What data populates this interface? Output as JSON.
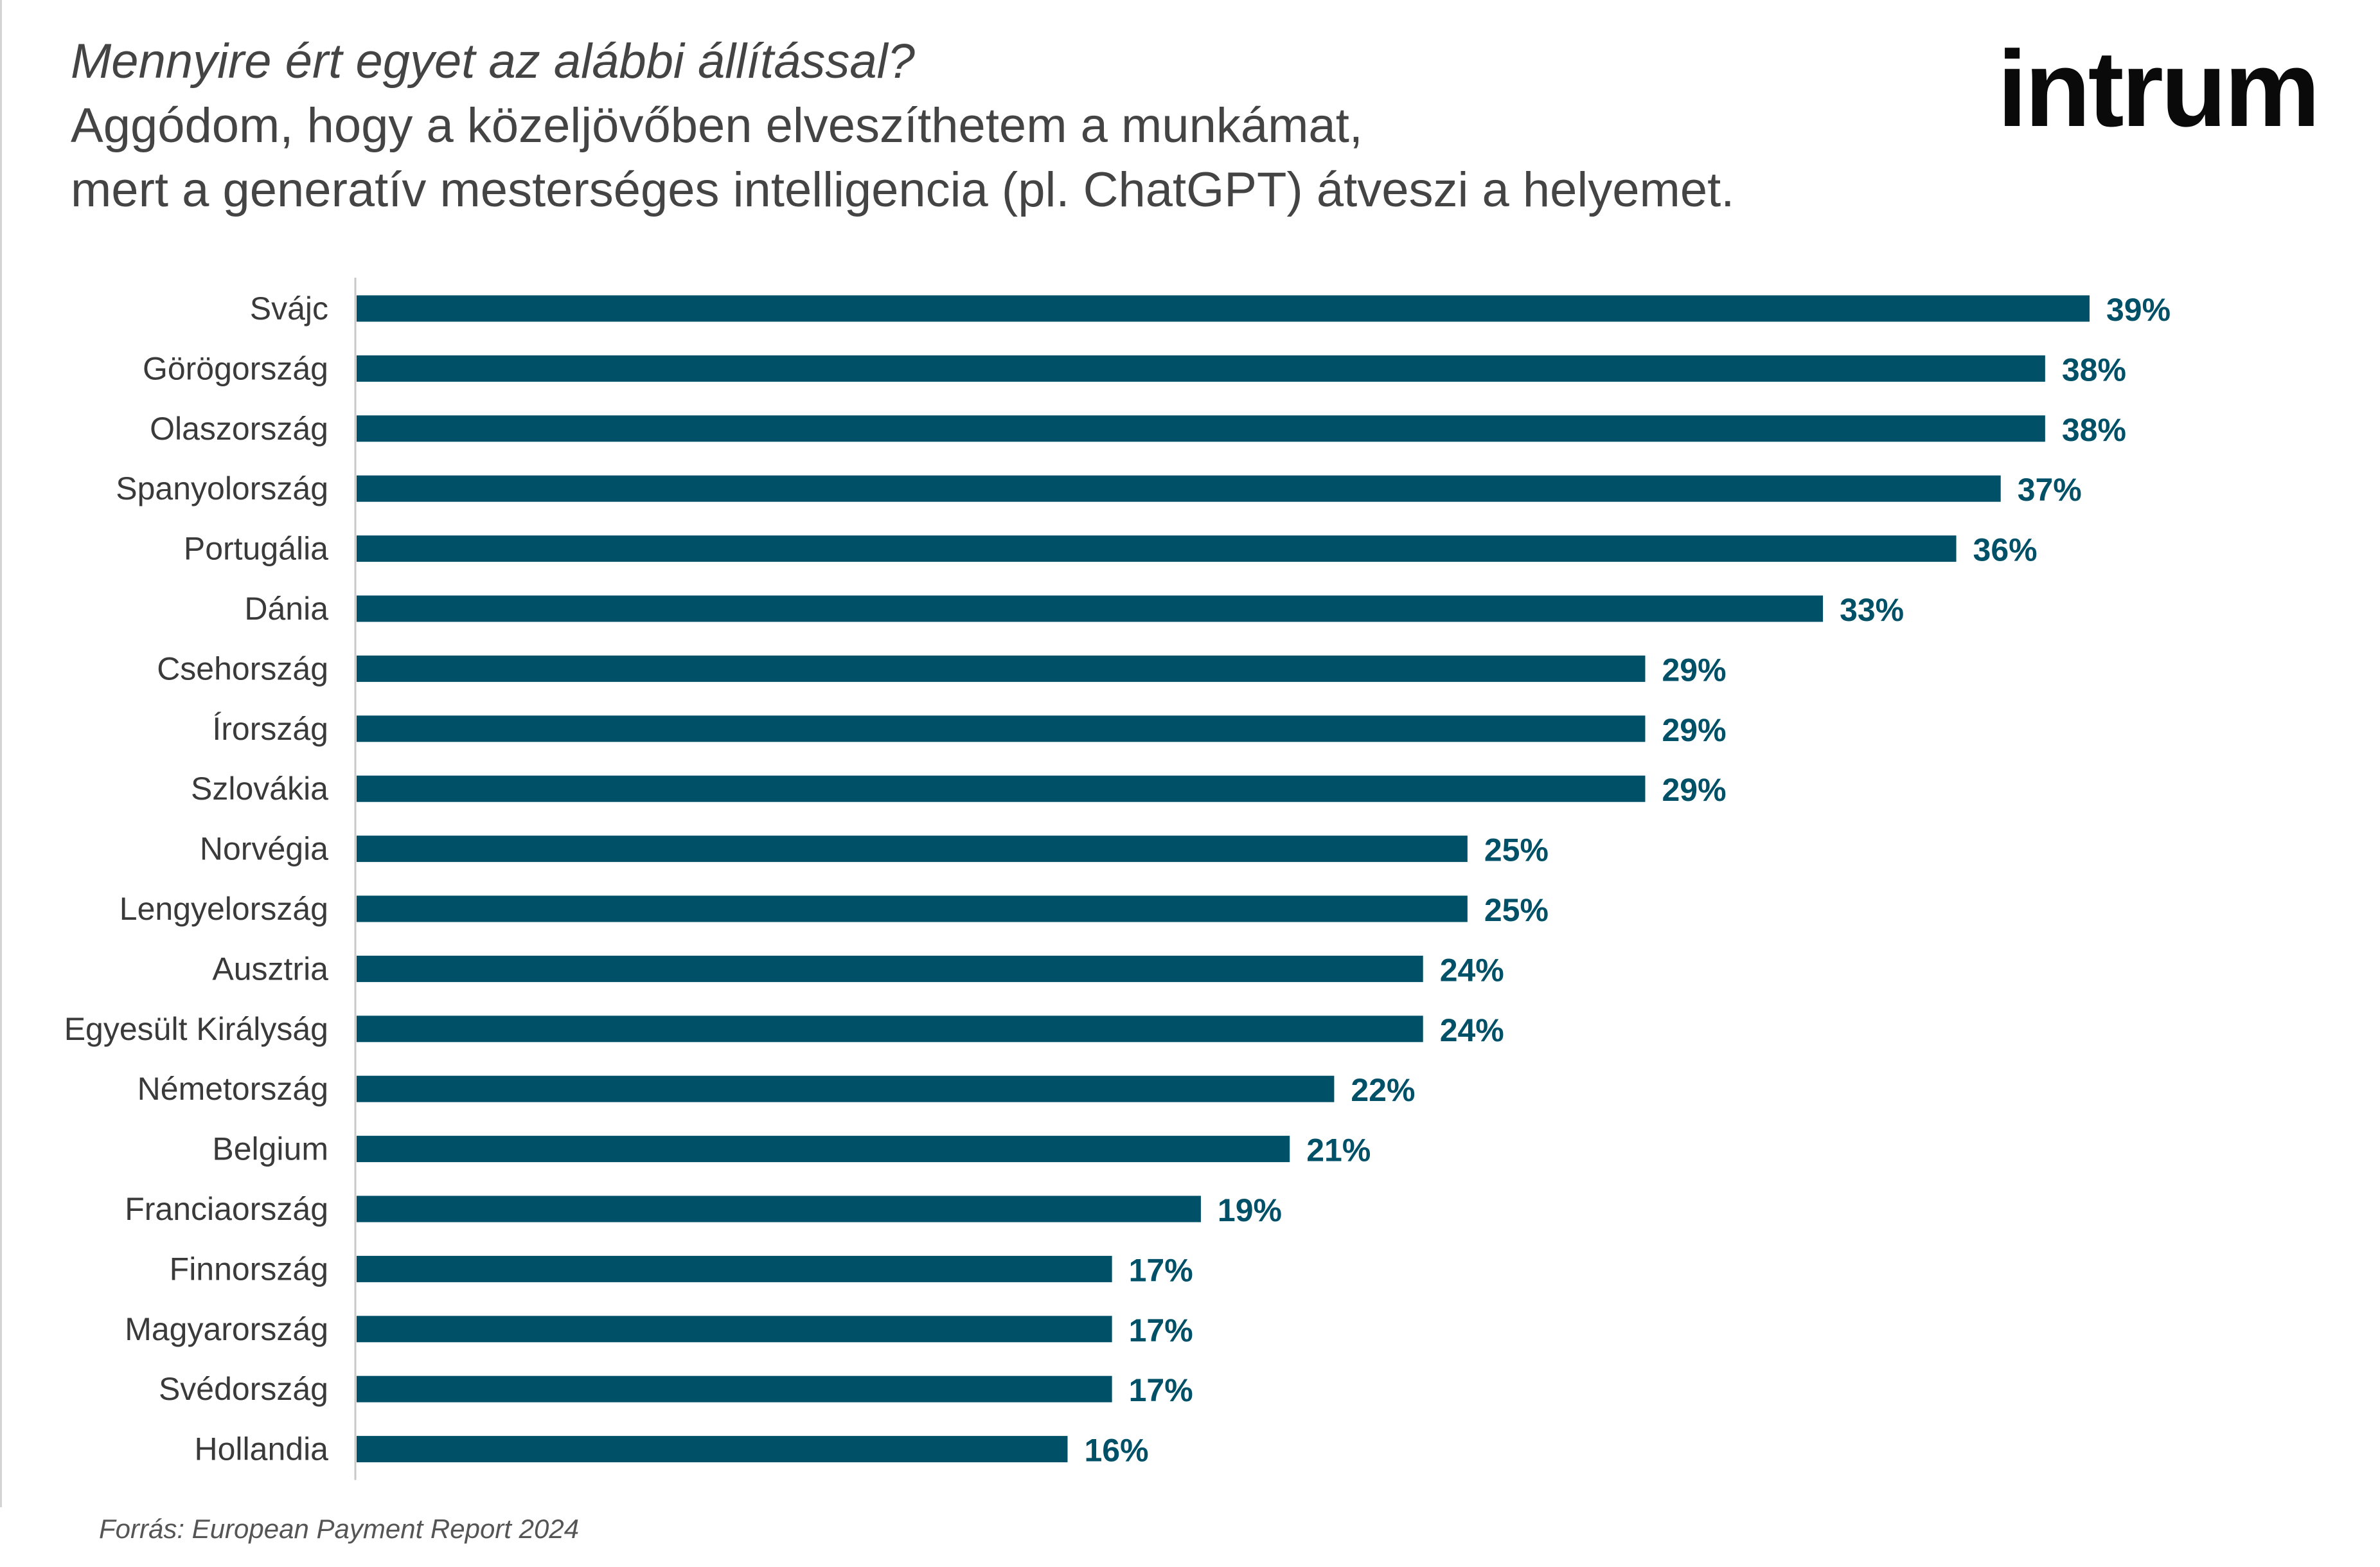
{
  "header": {
    "question": "Mennyire ért egyet az alábbi állítással?",
    "statement_line1": "Aggódom, hogy a közeljövőben elveszíthetem a munkámat,",
    "statement_line2": "mert a generatív mesterséges intelligencia (pl. ChatGPT) átveszi a helyemet."
  },
  "logo": {
    "text": "intrum"
  },
  "source": "Forrás: European Payment Report 2024",
  "colors": {
    "bar": "#005068",
    "value_label": "#005068",
    "axis_label": "#3a3a3a",
    "axis_line": "#c8c8c8"
  },
  "chart_data": {
    "type": "bar",
    "orientation": "horizontal",
    "title": "Mennyire ért egyet az alábbi állítással?",
    "xlabel": "",
    "ylabel": "",
    "value_suffix": "%",
    "xlim": [
      0,
      39
    ],
    "grid": false,
    "categories": [
      "Svájc",
      "Görögország",
      "Olaszország",
      "Spanyolország",
      "Portugália",
      "Dánia",
      "Csehország",
      "Írország",
      "Szlovákia",
      "Norvégia",
      "Lengyelország",
      "Ausztria",
      "Egyesült Királyság",
      "Németország",
      "Belgium",
      "Franciaország",
      "Finnország",
      "Magyarország",
      "Svédország",
      "Hollandia"
    ],
    "values": [
      39,
      38,
      38,
      37,
      36,
      33,
      29,
      29,
      29,
      25,
      25,
      24,
      24,
      22,
      21,
      19,
      17,
      17,
      17,
      16
    ],
    "value_labels": [
      "39%",
      "38%",
      "38%",
      "37%",
      "36%",
      "33%",
      "29%",
      "29%",
      "29%",
      "25%",
      "25%",
      "24%",
      "24%",
      "22%",
      "21%",
      "19%",
      "17%",
      "17%",
      "17%",
      "16%"
    ]
  }
}
